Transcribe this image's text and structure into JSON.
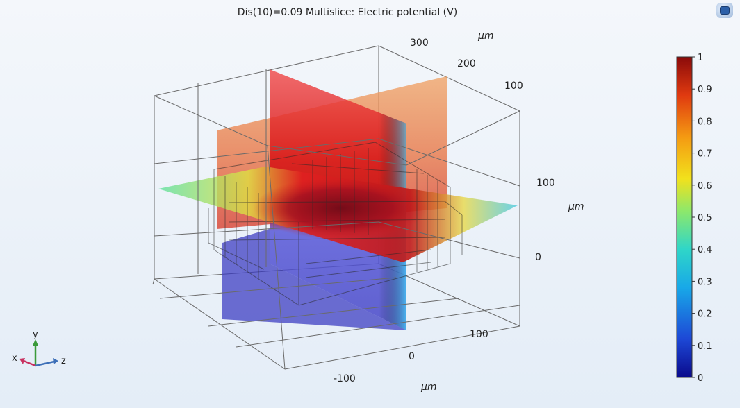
{
  "title": "Dis(10)=0.09   Multislice: Electric potential (V)",
  "chart_data": {
    "type": "3d-multislice",
    "title": "Dis(10)=0.09   Multislice: Electric potential (V)",
    "parameter": {
      "name": "Dis(10)",
      "value": 0.09
    },
    "expression": "Electric potential (V)",
    "colormap": "rainbow",
    "colorbar": {
      "min": 0,
      "max": 1,
      "ticks": [
        "0",
        "0.1",
        "0.2",
        "0.3",
        "0.4",
        "0.5",
        "0.6",
        "0.7",
        "0.8",
        "0.9",
        "1"
      ],
      "stops": [
        "#0a0a8c",
        "#1d48d6",
        "#18a8e8",
        "#2fd6c8",
        "#8ee86a",
        "#f2e11c",
        "#f49a12",
        "#e03a10",
        "#8a0a0a"
      ]
    },
    "axes": {
      "x": {
        "ticks": [
          "-100",
          "0",
          "100"
        ],
        "unit": "μm"
      },
      "y": {
        "ticks": [
          "0",
          "100"
        ],
        "unit": "μm"
      },
      "z": {
        "ticks": [
          "300",
          "200",
          "100"
        ],
        "unit": "μm"
      }
    },
    "orientation_triad": {
      "x": "x",
      "y": "y",
      "z": "z"
    }
  },
  "toolbar": {
    "icon": "view-icon"
  }
}
